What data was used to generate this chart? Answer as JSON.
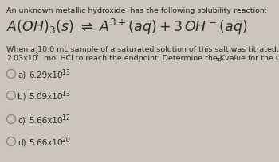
{
  "bg_color": "#cbc5bc",
  "text_color": "#2a2a2a",
  "title_line": "An unknown metallic hydroxide  has the following solubility reaction:",
  "body_line1": "When a 10.0 mL sample of a saturated solution of this salt was titrated, it required",
  "body_line2a": "2.03x10",
  "body_line2a_exp": "-3",
  "body_line2b": " mol HCl to reach the endpoint. Determine the K",
  "body_line2b_sub": "sp",
  "body_line2c": " value for the unknown.",
  "options": [
    {
      "label": "a)",
      "base": "6.29x10",
      "exp": "-13"
    },
    {
      "label": "b)",
      "base": "5.09x10",
      "exp": "-13"
    },
    {
      "label": "c)",
      "base": "5.66x10",
      "exp": "-12"
    },
    {
      "label": "d)",
      "base": "5.66x10",
      "exp": "-20"
    }
  ],
  "title_fontsize": 6.8,
  "eq_fontsize": 12.5,
  "body_fontsize": 6.8,
  "option_fontsize": 7.5,
  "sup_fontsize": 5.2,
  "sub_fontsize": 5.0
}
